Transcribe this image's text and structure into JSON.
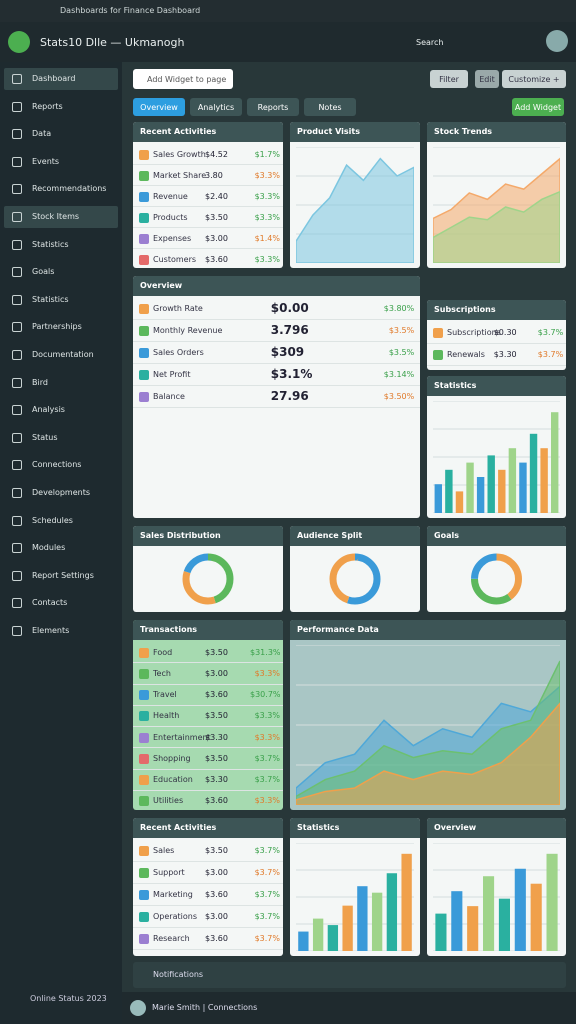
{
  "browser": {
    "url": "Dashboards for Finance Dashboard"
  },
  "header": {
    "title": "Stats10 Dlle — Ukmanogh",
    "search": "Search"
  },
  "sidebar": {
    "items": [
      "Dashboard",
      "Reports",
      "Data",
      "Events",
      "Recommendations",
      "Stock Items",
      "Statistics",
      "Goals",
      "Statistics",
      "Partnerships",
      "Documentation",
      "Bird",
      "Analysis",
      "Status",
      "Connections",
      "Developments",
      "Schedules",
      "Modules",
      "Report Settings",
      "Contacts",
      "Elements"
    ],
    "footer": "Online Status 2023"
  },
  "toolbar": {
    "search": "Add Widget to page",
    "buttons": [
      "Filter",
      "Edit",
      "Customize +"
    ],
    "tabs": [
      "Overview",
      "Analytics",
      "Reports",
      "Notes"
    ],
    "action": "Add Widget"
  },
  "panels": [
    {
      "title": "Recent Activities",
      "type": "list",
      "rows": [
        [
          "Sales Growth",
          "$4.52",
          "$1.7%"
        ],
        [
          "Market Share",
          "3.80",
          "$3.3%"
        ],
        [
          "Revenue",
          "$2.40",
          "$3.3%"
        ],
        [
          "Products",
          "$3.50",
          "$3.3%"
        ],
        [
          "Expenses",
          "$3.00",
          "$1.4%"
        ],
        [
          "Customers",
          "$3.60",
          "$3.3%"
        ]
      ]
    },
    {
      "title": "Product Visits",
      "type": "area",
      "colors": [
        "#7cc6e0"
      ],
      "series": [
        [
          10,
          22,
          30,
          45,
          38,
          48,
          40,
          44
        ]
      ]
    },
    {
      "title": "Stock Trends",
      "type": "area",
      "colors": [
        "#f4a96a",
        "#9fd48a"
      ],
      "series": [
        [
          35,
          42,
          55,
          50,
          62,
          58,
          70,
          82
        ],
        [
          20,
          28,
          36,
          34,
          44,
          40,
          50,
          56
        ]
      ]
    },
    {
      "title": "Overview",
      "type": "list",
      "rows": [
        [
          "Growth Rate",
          "$0.00",
          "$3.80%"
        ],
        [
          "Monthly Revenue",
          "3.796",
          "$3.5%"
        ],
        [
          "Sales Orders",
          "$309",
          "$3.5%"
        ],
        [
          "Net Profit",
          "$3.1%",
          "$3.14%"
        ],
        [
          "Balance",
          "27.96",
          "$3.50%"
        ]
      ]
    },
    {
      "title": "Subscriptions",
      "type": "list",
      "rows": [
        [
          "Subscriptions",
          "$0.30",
          "$3.7%"
        ],
        [
          "Renewals",
          "$3.30",
          "$3.7%"
        ]
      ]
    },
    {
      "title": "Statistics",
      "type": "bars",
      "colors": [
        "#3a9ad9",
        "#2ab0a0",
        "#f0a04b",
        "#9fd48a"
      ],
      "series": [
        [
          4,
          6,
          3,
          7,
          5,
          8,
          6,
          9,
          7,
          11,
          9,
          14
        ]
      ]
    },
    {
      "title": "Sales Distribution",
      "type": "donut",
      "colors": [
        "#5cb85c",
        "#f0a04b",
        "#3a9ad9"
      ],
      "series": [
        [
          45,
          35,
          20
        ]
      ]
    },
    {
      "title": "Audience Split",
      "type": "donut",
      "colors": [
        "#3a9ad9",
        "#f0a04b"
      ],
      "series": [
        [
          55,
          45
        ]
      ]
    },
    {
      "title": "Goals",
      "type": "donut",
      "colors": [
        "#f0a04b",
        "#5cb85c",
        "#3a9ad9"
      ],
      "series": [
        [
          40,
          35,
          25
        ]
      ]
    },
    {
      "title": "Transactions",
      "type": "list",
      "rows": [
        [
          "Food",
          "$3.50",
          "$31.3%"
        ],
        [
          "Tech",
          "$3.00",
          "$3.3%"
        ],
        [
          "Travel",
          "$3.60",
          "$30.7%"
        ],
        [
          "Health",
          "$3.50",
          "$3.3%"
        ],
        [
          "Entertainment",
          "$3.30",
          "$3.3%"
        ],
        [
          "Shopping",
          "$3.50",
          "$3.7%"
        ],
        [
          "Education",
          "$3.30",
          "$3.7%"
        ],
        [
          "Utilities",
          "$3.60",
          "$3.3%"
        ]
      ]
    },
    {
      "title": "Performance Data",
      "type": "area",
      "colors": [
        "#4fa8d8",
        "#6cc070",
        "#f0a04b"
      ],
      "series": [
        [
          10,
          25,
          30,
          50,
          35,
          45,
          40,
          60,
          55,
          70
        ],
        [
          5,
          15,
          20,
          35,
          28,
          32,
          30,
          45,
          50,
          85
        ],
        [
          3,
          8,
          10,
          20,
          15,
          20,
          18,
          25,
          40,
          60
        ]
      ]
    },
    {
      "title": "Recent Activities",
      "type": "list",
      "rows": [
        [
          "Sales",
          "$3.50",
          "$3.7%"
        ],
        [
          "Support",
          "$3.00",
          "$3.7%"
        ],
        [
          "Marketing",
          "$3.60",
          "$3.7%"
        ],
        [
          "Operations",
          "$3.00",
          "$3.7%"
        ],
        [
          "Research",
          "$3.60",
          "$3.7%"
        ]
      ]
    },
    {
      "title": "Statistics",
      "type": "bars",
      "colors": [
        "#3a9ad9",
        "#9fd48a",
        "#2ab0a0",
        "#f0a04b"
      ],
      "series": [
        [
          3,
          5,
          4,
          7,
          10,
          9,
          12,
          15
        ]
      ]
    },
    {
      "title": "Overview",
      "type": "bars",
      "colors": [
        "#2ab0a0",
        "#3a9ad9",
        "#f0a04b",
        "#9fd48a"
      ],
      "series": [
        [
          5,
          8,
          6,
          10,
          7,
          11,
          9,
          13
        ]
      ]
    }
  ],
  "notifications": "Notifications",
  "footer": {
    "user": "Marie Smith | Connections"
  }
}
